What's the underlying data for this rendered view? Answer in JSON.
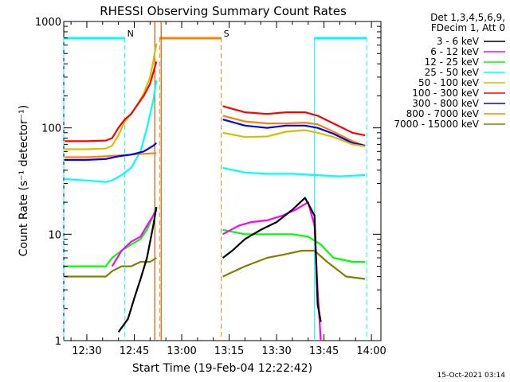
{
  "chart_data": {
    "type": "line",
    "title": "RHESSI Observing Summary Count Rates",
    "xlabel": "Start Time (19-Feb-04 12:22:42)",
    "ylabel": "Count Rate (s⁻¹ detector⁻¹)",
    "y_scale": "log",
    "ylim": [
      1,
      1000
    ],
    "xlim": [
      "12:22:42",
      "14:03:00"
    ],
    "x_ticks": [
      "12:30",
      "12:45",
      "13:00",
      "13:15",
      "13:30",
      "13:45",
      "14:00"
    ],
    "y_ticks": [
      "1",
      "10",
      "100",
      "1000"
    ],
    "grid": false,
    "legend_header": [
      "Det 1,3,4,5,6,9,",
      "FDecim 1, Att 0"
    ],
    "legend_position": "right",
    "footer_timestamp": "15-Oct-2021 03:14",
    "annotations": [
      {
        "label": "N",
        "type": "night",
        "color": "#00ffff",
        "intervals": [
          [
            "12:22:42",
            "12:42:00"
          ],
          [
            "13:42:00",
            "13:58:30"
          ]
        ]
      },
      {
        "label": "S",
        "type": "saa",
        "color": "#ff8000",
        "intervals": [
          [
            "12:53:00",
            "13:12:30"
          ]
        ]
      },
      {
        "label": "",
        "type": "data-gap",
        "color": "#c06000",
        "intervals": [
          [
            "12:51:30",
            "12:53:30"
          ]
        ]
      }
    ],
    "series": [
      {
        "name": "3 - 6 keV",
        "color": "#000000",
        "points": [
          [
            "12:40",
            1.2
          ],
          [
            "12:43",
            1.6
          ],
          [
            "12:45",
            2.5
          ],
          [
            "12:47",
            3.8
          ],
          [
            "12:49",
            6
          ],
          [
            "12:51",
            12
          ],
          [
            "12:52",
            18
          ],
          [
            "13:13",
            6
          ],
          [
            "13:16",
            7
          ],
          [
            "13:20",
            9
          ],
          [
            "13:25",
            11
          ],
          [
            "13:30",
            13
          ],
          [
            "13:35",
            17
          ],
          [
            "13:39",
            22
          ],
          [
            "13:42",
            15
          ],
          [
            "13:43",
            2.2
          ],
          [
            "13:44",
            1.5
          ]
        ]
      },
      {
        "name": "6 - 12 keV",
        "color": "#ff00ff",
        "points": [
          [
            "12:38",
            5
          ],
          [
            "12:41",
            7
          ],
          [
            "12:44",
            8.5
          ],
          [
            "12:47",
            9.5
          ],
          [
            "12:49",
            12
          ],
          [
            "12:51",
            15
          ],
          [
            "12:52",
            17
          ],
          [
            "13:13",
            10
          ],
          [
            "13:18",
            12
          ],
          [
            "13:22",
            13
          ],
          [
            "13:27",
            13.5
          ],
          [
            "13:32",
            15
          ],
          [
            "13:36",
            17
          ],
          [
            "13:40",
            20
          ],
          [
            "13:42",
            12
          ],
          [
            "13:43",
            3
          ],
          [
            "13:44",
            1
          ]
        ]
      },
      {
        "name": "12 - 25 keV",
        "color": "#00ff00",
        "points": [
          [
            "12:23",
            5
          ],
          [
            "12:30",
            5
          ],
          [
            "12:36",
            5
          ],
          [
            "12:38",
            6
          ],
          [
            "12:41",
            7
          ],
          [
            "12:44",
            8
          ],
          [
            "12:47",
            9
          ],
          [
            "12:49",
            11
          ],
          [
            "12:51",
            15
          ],
          [
            "12:52",
            18
          ],
          [
            "13:13",
            11
          ],
          [
            "13:20",
            10
          ],
          [
            "13:25",
            10
          ],
          [
            "13:30",
            10
          ],
          [
            "13:35",
            10
          ],
          [
            "13:40",
            9.5
          ],
          [
            "13:44",
            8
          ],
          [
            "13:48",
            6
          ],
          [
            "13:54",
            5.5
          ],
          [
            "13:58",
            5.5
          ]
        ]
      },
      {
        "name": "25 - 50 keV",
        "color": "#00ffff",
        "points": [
          [
            "12:23",
            33
          ],
          [
            "12:30",
            32
          ],
          [
            "12:36",
            31
          ],
          [
            "12:38",
            32
          ],
          [
            "12:41",
            36
          ],
          [
            "12:44",
            42
          ],
          [
            "12:47",
            60
          ],
          [
            "12:49",
            100
          ],
          [
            "12:51",
            180
          ],
          [
            "12:52",
            280
          ],
          [
            "13:13",
            42
          ],
          [
            "13:20",
            38
          ],
          [
            "13:27",
            37
          ],
          [
            "13:35",
            37
          ],
          [
            "13:42",
            36
          ],
          [
            "13:50",
            35
          ],
          [
            "13:58",
            36
          ]
        ]
      },
      {
        "name": "50 - 100 keV",
        "color": "#d4c000",
        "points": [
          [
            "12:23",
            63
          ],
          [
            "12:30",
            63
          ],
          [
            "12:36",
            64
          ],
          [
            "12:38",
            68
          ],
          [
            "12:40",
            85
          ],
          [
            "12:42",
            115
          ],
          [
            "12:44",
            135
          ],
          [
            "12:46",
            165
          ],
          [
            "12:48",
            210
          ],
          [
            "12:50",
            300
          ],
          [
            "12:51",
            420
          ],
          [
            "12:52",
            620
          ],
          [
            "13:13",
            90
          ],
          [
            "13:20",
            82
          ],
          [
            "13:27",
            83
          ],
          [
            "13:33",
            92
          ],
          [
            "13:39",
            95
          ],
          [
            "13:43",
            90
          ],
          [
            "13:48",
            82
          ],
          [
            "13:54",
            70
          ],
          [
            "13:58",
            67
          ]
        ]
      },
      {
        "name": "100 - 300 keV",
        "color": "#ff0000",
        "points": [
          [
            "12:23",
            75
          ],
          [
            "12:30",
            75
          ],
          [
            "12:36",
            76
          ],
          [
            "12:38",
            80
          ],
          [
            "12:40",
            100
          ],
          [
            "12:42",
            120
          ],
          [
            "12:44",
            135
          ],
          [
            "12:46",
            165
          ],
          [
            "12:48",
            200
          ],
          [
            "12:50",
            260
          ],
          [
            "12:51",
            330
          ],
          [
            "12:52",
            420
          ],
          [
            "13:13",
            160
          ],
          [
            "13:20",
            140
          ],
          [
            "13:27",
            135
          ],
          [
            "13:33",
            140
          ],
          [
            "13:39",
            140
          ],
          [
            "13:43",
            130
          ],
          [
            "13:48",
            110
          ],
          [
            "13:54",
            90
          ],
          [
            "13:58",
            85
          ]
        ]
      },
      {
        "name": "300 - 800 keV",
        "color": "#0000ff",
        "points": [
          [
            "12:23",
            50
          ],
          [
            "12:30",
            50
          ],
          [
            "12:36",
            51
          ],
          [
            "12:40",
            54
          ],
          [
            "12:44",
            56
          ],
          [
            "12:48",
            60
          ],
          [
            "12:51",
            68
          ],
          [
            "12:52",
            72
          ],
          [
            "13:13",
            120
          ],
          [
            "13:20",
            105
          ],
          [
            "13:27",
            100
          ],
          [
            "13:33",
            105
          ],
          [
            "13:39",
            105
          ],
          [
            "13:43",
            100
          ],
          [
            "13:48",
            88
          ],
          [
            "13:54",
            72
          ],
          [
            "13:58",
            68
          ]
        ]
      },
      {
        "name": "800 - 7000 keV",
        "color": "#ff8000",
        "points": [
          [
            "12:23",
            53
          ],
          [
            "12:30",
            53
          ],
          [
            "12:36",
            54
          ],
          [
            "12:40",
            55
          ],
          [
            "12:44",
            56
          ],
          [
            "12:48",
            57
          ],
          [
            "12:52",
            58
          ],
          [
            "13:13",
            130
          ],
          [
            "13:20",
            115
          ],
          [
            "13:27",
            110
          ],
          [
            "13:33",
            110
          ],
          [
            "13:39",
            112
          ],
          [
            "13:43",
            108
          ],
          [
            "13:48",
            92
          ],
          [
            "13:54",
            75
          ],
          [
            "13:58",
            68
          ]
        ]
      },
      {
        "name": "7000 - 15000 keV",
        "color": "#808000",
        "points": [
          [
            "12:23",
            4
          ],
          [
            "12:30",
            4
          ],
          [
            "12:36",
            4
          ],
          [
            "12:38",
            4.5
          ],
          [
            "12:41",
            5
          ],
          [
            "12:44",
            5
          ],
          [
            "12:47",
            5.5
          ],
          [
            "12:50",
            5.5
          ],
          [
            "12:52",
            6
          ],
          [
            "13:13",
            4
          ],
          [
            "13:20",
            5
          ],
          [
            "13:27",
            6
          ],
          [
            "13:33",
            6.5
          ],
          [
            "13:38",
            7
          ],
          [
            "13:42",
            7
          ],
          [
            "13:46",
            5.5
          ],
          [
            "13:52",
            4
          ],
          [
            "13:58",
            3.8
          ]
        ]
      }
    ]
  }
}
